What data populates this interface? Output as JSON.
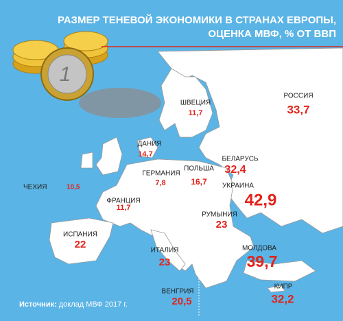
{
  "header": {
    "title_lines": [
      "РАЗМЕР ТЕНЕВОЙ ЭКОНОМИКИ В СТРАНАХ ЕВРОПЫ,",
      "ОЦЕНКА МВФ, % ОТ ВВП"
    ]
  },
  "countries": [
    {
      "name": "РОССИЯ",
      "value": "33,7"
    },
    {
      "name": "ШВЕЦИЯ",
      "value": "11,7"
    },
    {
      "name": "ДАНИЯ",
      "value": "14,7"
    },
    {
      "name": "БЕЛАРУСЬ",
      "value": "32,4"
    },
    {
      "name": "ГЕРМАНИЯ",
      "value": "7,8"
    },
    {
      "name": "ПОЛЬША",
      "value": "16,7"
    },
    {
      "name": "УКРАИНА",
      "value": "42,9"
    },
    {
      "name": "ЧЕХИЯ",
      "value": "10,5"
    },
    {
      "name": "ФРАНЦИЯ",
      "value": "11,7"
    },
    {
      "name": "РУМЫНИЯ",
      "value": "23"
    },
    {
      "name": "ИСПАНИЯ",
      "value": "22"
    },
    {
      "name": "ИТАЛИЯ",
      "value": "23"
    },
    {
      "name": "МОЛДОВА",
      "value": "39,7"
    },
    {
      "name": "ВЕНГРИЯ",
      "value": "20,5"
    },
    {
      "name": "КИПР",
      "value": "32,2"
    }
  ],
  "source": {
    "label": "Источник:",
    "text": "доклад МВФ 2017 г."
  }
}
